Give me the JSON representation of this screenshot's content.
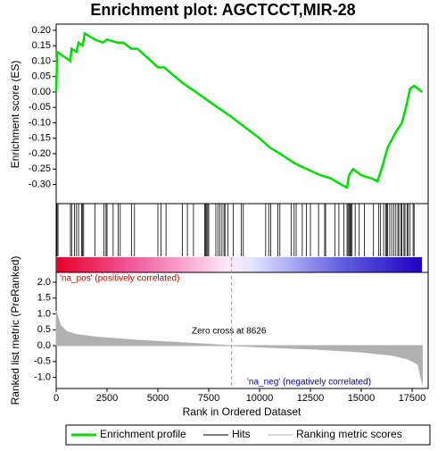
{
  "chart_data": {
    "type": "line",
    "title": "Enrichment plot: AGCTCCT,MIR-28",
    "ylabel": "Enrichment score (ES)",
    "xlabel": "Rank in Ordered Dataset",
    "x": [
      0,
      50,
      700,
      750,
      1000,
      1100,
      1300,
      1400,
      1900,
      2300,
      2500,
      3000,
      3300,
      3700,
      4000,
      5000,
      5300,
      6200,
      7300,
      7500,
      8600,
      10000,
      10500,
      11000,
      11700,
      12000,
      13000,
      13500,
      14000,
      14300,
      14400,
      14600,
      15000,
      15500,
      15800,
      16000,
      16300,
      16700,
      17000,
      17200,
      17400,
      17600,
      18000
    ],
    "series": [
      {
        "name": "Enrichment profile",
        "color": "#00dd00",
        "values": [
          0.0,
          0.13,
          0.1,
          0.14,
          0.13,
          0.16,
          0.15,
          0.19,
          0.17,
          0.16,
          0.17,
          0.16,
          0.16,
          0.14,
          0.14,
          0.08,
          0.08,
          0.03,
          -0.02,
          -0.03,
          -0.08,
          -0.15,
          -0.18,
          -0.2,
          -0.23,
          -0.24,
          -0.27,
          -0.28,
          -0.3,
          -0.31,
          -0.27,
          -0.25,
          -0.27,
          -0.28,
          -0.29,
          -0.25,
          -0.18,
          -0.13,
          -0.1,
          -0.05,
          0.01,
          0.02,
          0.0
        ]
      }
    ],
    "xlim": [
      0,
      18290
    ],
    "xticks": [
      0,
      2500,
      5000,
      7500,
      10000,
      12500,
      15000,
      17500
    ],
    "ylim": [
      -0.362,
      0.22
    ],
    "yticks": [
      {
        "value": 0.2,
        "label": "0.20"
      },
      {
        "value": 0.15,
        "label": "0.15"
      },
      {
        "value": 0.1,
        "label": "0.10"
      },
      {
        "value": 0.05,
        "label": "0.05"
      },
      {
        "value": 0,
        "label": "0.00"
      },
      {
        "value": -0.05,
        "label": "-0.05"
      },
      {
        "value": -0.1,
        "label": "-0.10"
      },
      {
        "value": -0.15,
        "label": "-0.15"
      },
      {
        "value": -0.2,
        "label": "-0.20"
      },
      {
        "value": -0.25,
        "label": "-0.25"
      },
      {
        "value": -0.3,
        "label": "-0.30"
      }
    ],
    "hits": {
      "name": "Hits",
      "color": "#000000",
      "positions": [
        40,
        90,
        700,
        760,
        900,
        1000,
        1100,
        1250,
        1300,
        1350,
        1900,
        2350,
        2450,
        2500,
        2800,
        3050,
        3150,
        3700,
        3850,
        5000,
        5150,
        5400,
        6200,
        6450,
        6750,
        7300,
        7350,
        7400,
        7450,
        7500,
        7850,
        7950,
        8050,
        8150,
        8250,
        8300,
        8450,
        8700,
        9100,
        9200,
        10300,
        10450,
        10550,
        10900,
        11000,
        11550,
        11700,
        11800,
        12100,
        12300,
        12500,
        12900,
        13200,
        13250,
        13700,
        13900,
        14150,
        14300,
        14350,
        14400,
        14450,
        14500,
        14550,
        14700,
        14900,
        15150,
        15600,
        15850,
        15950,
        16100,
        16200,
        16250,
        16300,
        16400,
        16500,
        16600,
        16700,
        16800,
        16850,
        16950,
        17000,
        17100,
        17150,
        17250,
        17300,
        17400,
        17550,
        17600
      ]
    },
    "metric": {
      "name": "Ranking metric scores",
      "color": "#b0b0b0",
      "ylabel": "Ranked list metric (PreRanked)",
      "x": [
        0,
        200,
        500,
        1000,
        2000,
        4000,
        6000,
        8626,
        11000,
        13000,
        15000,
        16500,
        17300,
        17800,
        18000
      ],
      "values": [
        1.1,
        0.65,
        0.45,
        0.35,
        0.27,
        0.17,
        0.1,
        0,
        -0.07,
        -0.12,
        -0.2,
        -0.3,
        -0.42,
        -0.6,
        -1.2
      ],
      "ylim": [
        -1.35,
        2.31
      ],
      "yticks": [
        {
          "value": 2,
          "label": "2.0"
        },
        1.5,
        {
          "value": 1,
          "label": "1.0"
        },
        0.5,
        {
          "value": 0,
          "label": "0.0"
        },
        -0.5,
        {
          "value": -1,
          "label": "-1.0"
        }
      ]
    },
    "zero_cross": 8626,
    "annotations": {
      "zero": "Zero cross at 8626",
      "pos": "'na_pos' (positively correlated)",
      "neg": "'na_neg' (negatively correlated)"
    }
  }
}
